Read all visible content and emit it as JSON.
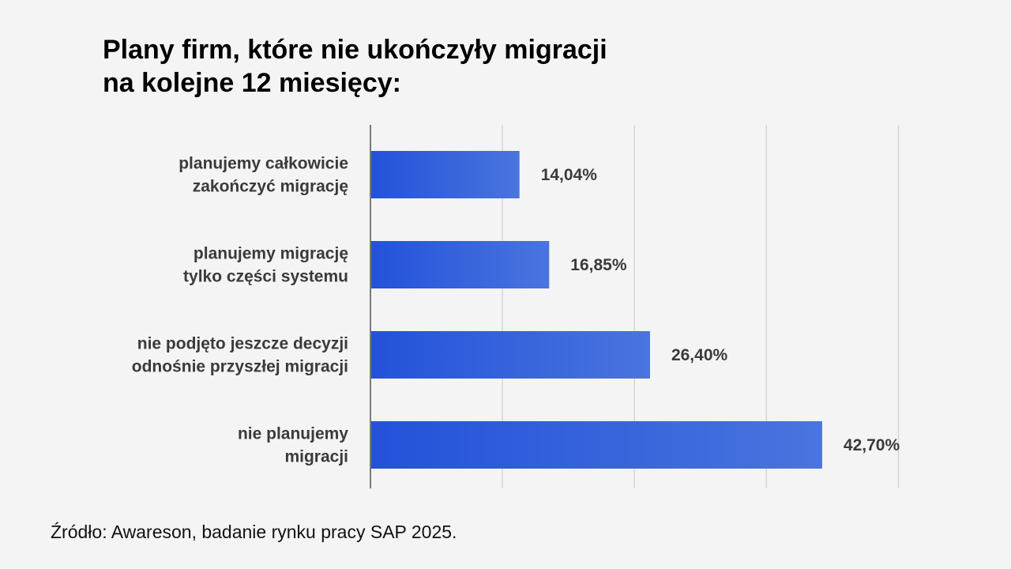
{
  "title_lines": [
    "Plany firm, które nie ukończyły migracji",
    "na kolejne 12 miesięcy:"
  ],
  "source": "Źródło: Awareson, badanie rynku pracy SAP 2025.",
  "colors": {
    "bar_start": "#2352da",
    "bar_end": "#4a74de",
    "grid": "#d6d6d6",
    "axis": "#7a7a7a"
  },
  "chart_data": {
    "type": "bar",
    "orientation": "horizontal",
    "categories": [
      [
        "planujemy całkowicie",
        "zakończyć migrację"
      ],
      [
        "planujemy migrację",
        "tylko części systemu"
      ],
      [
        "nie podjęto jeszcze decyzji",
        "odnośnie przyszłej migracji"
      ],
      [
        "nie planujemy",
        "migracji"
      ]
    ],
    "values": [
      14.04,
      16.85,
      26.4,
      42.7
    ],
    "value_labels": [
      "14,04%",
      "16,85%",
      "26,40%",
      "42,70%"
    ],
    "xlim": [
      0,
      50
    ],
    "grid": true,
    "title": "Plany firm, które nie ukończyły migracji na kolejne 12 miesięcy:"
  }
}
